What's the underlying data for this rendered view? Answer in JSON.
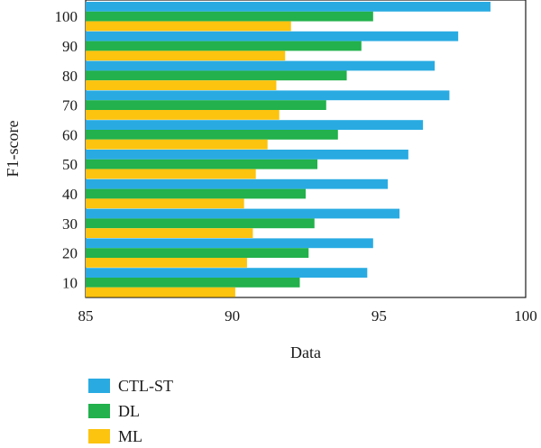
{
  "chart_data": {
    "type": "bar",
    "orientation": "horizontal",
    "categories": [
      "10",
      "20",
      "30",
      "40",
      "50",
      "60",
      "70",
      "80",
      "90",
      "100"
    ],
    "series": [
      {
        "name": "CTL-ST",
        "color": "#29abe2",
        "values": [
          94.6,
          94.8,
          95.7,
          95.3,
          96.0,
          96.5,
          97.4,
          96.9,
          97.7,
          98.8
        ]
      },
      {
        "name": "DL",
        "color": "#22b14c",
        "values": [
          92.3,
          92.6,
          92.8,
          92.5,
          92.9,
          93.6,
          93.2,
          93.9,
          94.4,
          94.8
        ]
      },
      {
        "name": "ML",
        "color": "#fcc30f",
        "values": [
          90.1,
          90.5,
          90.7,
          90.4,
          90.8,
          91.2,
          91.6,
          91.5,
          91.8,
          92.0
        ]
      }
    ],
    "xlabel": "Data",
    "ylabel": "F1-score",
    "xlim": [
      85,
      100
    ],
    "xticks": [
      "85",
      "90",
      "95",
      "100"
    ],
    "grid": false,
    "legend_position": "bottom-left"
  }
}
